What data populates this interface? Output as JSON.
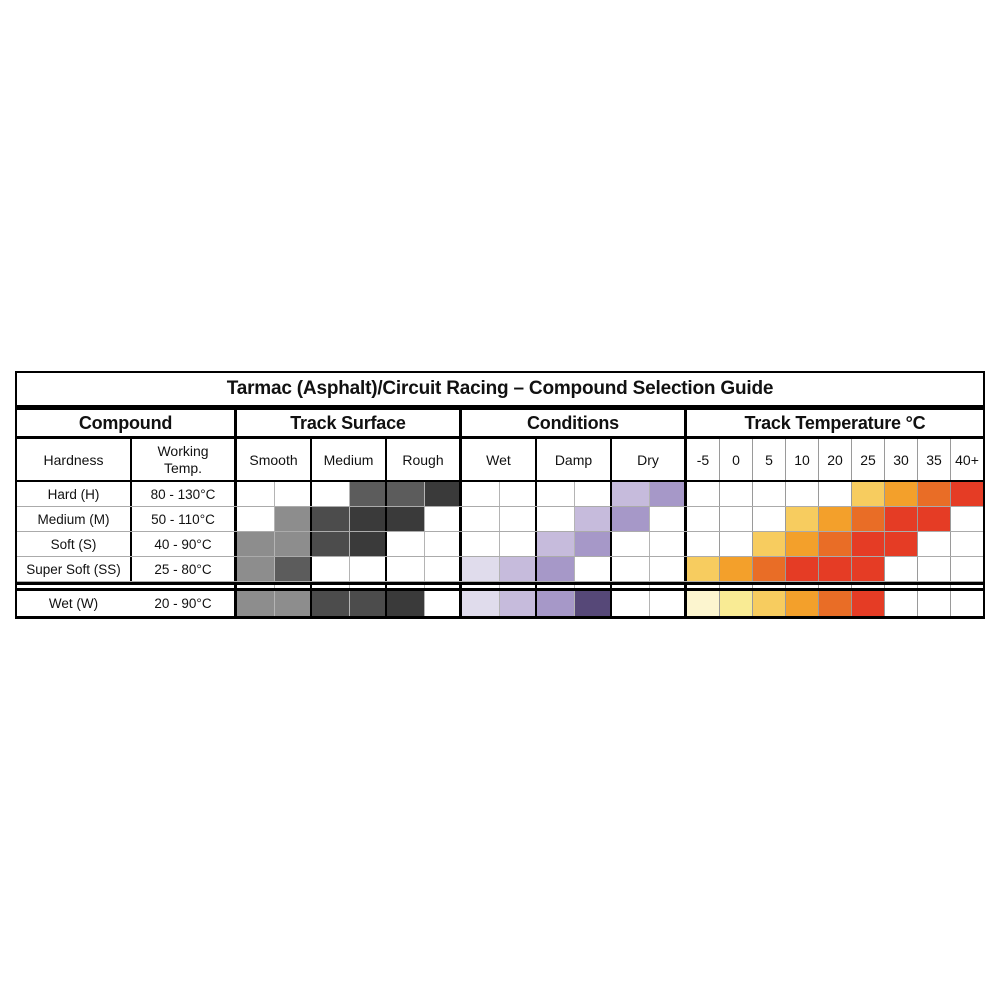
{
  "chart_data": {
    "type": "table",
    "title": "Tarmac (Asphalt)/Circuit Racing – Compound Selection Guide",
    "groups": [
      "Compound",
      "Track Surface",
      "Conditions",
      "Track Temperature °C"
    ],
    "subheaders": {
      "hardness": "Hardness",
      "working_temp_line1": "Working",
      "working_temp_line2": "Temp.",
      "surface": [
        "Smooth",
        "Medium",
        "Rough"
      ],
      "conditions": [
        "Wet",
        "Damp",
        "Dry"
      ],
      "temperatures": [
        "-5",
        "0",
        "5",
        "10",
        "20",
        "25",
        "30",
        "35",
        "40+"
      ]
    },
    "palette": {
      "W": "#ffffff",
      "G1": "#8d8d8d",
      "G2": "#5c5c5c",
      "G3": "#4c4c4c",
      "G4": "#3a3a3a",
      "P1": "#e0dcec",
      "P2": "#c6bbdc",
      "P3": "#a698c8",
      "P4": "#564878",
      "T0": "#fcf5cf",
      "T1": "#f9eb94",
      "T2": "#f7cc5f",
      "T3": "#f3a02b",
      "T4": "#e96d26",
      "T5": "#e53c25"
    },
    "rows": [
      {
        "hardness": "Hard (H)",
        "working_temp": "80 - 130°C",
        "surface": [
          "W",
          "W",
          "W",
          "G2",
          "G2",
          "G4"
        ],
        "conditions": [
          "W",
          "W",
          "W",
          "W",
          "P2",
          "P3"
        ],
        "temperature": [
          "W",
          "W",
          "W",
          "W",
          "W",
          "T2",
          "T3",
          "T4",
          "T5"
        ]
      },
      {
        "hardness": "Medium (M)",
        "working_temp": "50 - 110°C",
        "surface": [
          "W",
          "G1",
          "G3",
          "G4",
          "G4",
          "W"
        ],
        "conditions": [
          "W",
          "W",
          "W",
          "P2",
          "P3",
          "W"
        ],
        "temperature": [
          "W",
          "W",
          "W",
          "T2",
          "T3",
          "T4",
          "T5",
          "T5",
          "W"
        ]
      },
      {
        "hardness": "Soft (S)",
        "working_temp": "40 - 90°C",
        "surface": [
          "G1",
          "G1",
          "G3",
          "G4",
          "W",
          "W"
        ],
        "conditions": [
          "W",
          "W",
          "P2",
          "P3",
          "W",
          "W"
        ],
        "temperature": [
          "W",
          "W",
          "T2",
          "T3",
          "T4",
          "T5",
          "T5",
          "W",
          "W"
        ]
      },
      {
        "hardness": "Super Soft (SS)",
        "working_temp": "25 - 80°C",
        "surface": [
          "G1",
          "G2",
          "W",
          "W",
          "W",
          "W"
        ],
        "conditions": [
          "P1",
          "P2",
          "P3",
          "W",
          "W",
          "W"
        ],
        "temperature": [
          "T2",
          "T3",
          "T4",
          "T5",
          "T5",
          "T5",
          "W",
          "W",
          "W"
        ]
      }
    ],
    "wet_row": {
      "hardness": "Wet (W)",
      "working_temp": "20 - 90°C",
      "surface": [
        "G1",
        "G1",
        "G3",
        "G3",
        "G4",
        "W"
      ],
      "conditions": [
        "P1",
        "P2",
        "P3",
        "P4",
        "W",
        "W"
      ],
      "temperature": [
        "T0",
        "T1",
        "T2",
        "T3",
        "T4",
        "T5",
        "W",
        "W",
        "W"
      ]
    }
  }
}
